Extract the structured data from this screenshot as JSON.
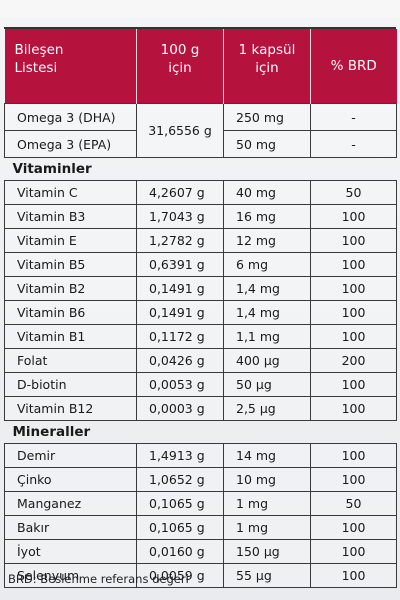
{
  "header": {
    "col1_line1": "Bileşen",
    "col1_line2": "Listesi",
    "col2_line1": "100 g",
    "col2_line2": "için",
    "col3_line1": "1 kapsül",
    "col3_line2": "için",
    "col4": "% BRD"
  },
  "omega": {
    "shared_100g": "31,6556 g",
    "rows": [
      {
        "name": "Omega 3 (DHA)",
        "capsule": "250 mg",
        "brd": "-"
      },
      {
        "name": "Omega 3 (EPA)",
        "capsule": "50 mg",
        "brd": "-"
      }
    ]
  },
  "vitamins": {
    "title": "Vitaminler",
    "rows": [
      {
        "name": "Vitamin C",
        "per100": "4,2607 g",
        "capsule": "40 mg",
        "brd": "50"
      },
      {
        "name": "Vitamin B3",
        "per100": "1,7043 g",
        "capsule": "16 mg",
        "brd": "100"
      },
      {
        "name": "Vitamin E",
        "per100": "1,2782 g",
        "capsule": "12 mg",
        "brd": "100"
      },
      {
        "name": "Vitamin B5",
        "per100": "0,6391 g",
        "capsule": "6 mg",
        "brd": "100"
      },
      {
        "name": "Vitamin B2",
        "per100": "0,1491 g",
        "capsule": "1,4 mg",
        "brd": "100"
      },
      {
        "name": "Vitamin B6",
        "per100": "0,1491 g",
        "capsule": "1,4 mg",
        "brd": "100"
      },
      {
        "name": "Vitamin B1",
        "per100": "0,1172 g",
        "capsule": "1,1 mg",
        "brd": "100"
      },
      {
        "name": "Folat",
        "per100": "0,0426 g",
        "capsule": "400 µg",
        "brd": "200"
      },
      {
        "name": "D-biotin",
        "per100": "0,0053 g",
        "capsule": "50 µg",
        "brd": "100"
      },
      {
        "name": "Vitamin B12",
        "per100": "0,0003 g",
        "capsule": "2,5 µg",
        "brd": "100"
      }
    ]
  },
  "minerals": {
    "title": "Mineraller",
    "rows": [
      {
        "name": "Demir",
        "per100": "1,4913 g",
        "capsule": "14 mg",
        "brd": "100"
      },
      {
        "name": "Çinko",
        "per100": "1,0652 g",
        "capsule": "10 mg",
        "brd": "100"
      },
      {
        "name": "Manganez",
        "per100": "0,1065 g",
        "capsule": "1 mg",
        "brd": "50"
      },
      {
        "name": "Bakır",
        "per100": "0,1065 g",
        "capsule": "1 mg",
        "brd": "100"
      },
      {
        "name": "İyot",
        "per100": "0,0160 g",
        "capsule": "150 µg",
        "brd": "100"
      },
      {
        "name": "Selenyum",
        "per100": "0,0059 g",
        "capsule": "55 µg",
        "brd": "100"
      }
    ]
  },
  "footnote": "BRD: Beslenme referans değeri"
}
